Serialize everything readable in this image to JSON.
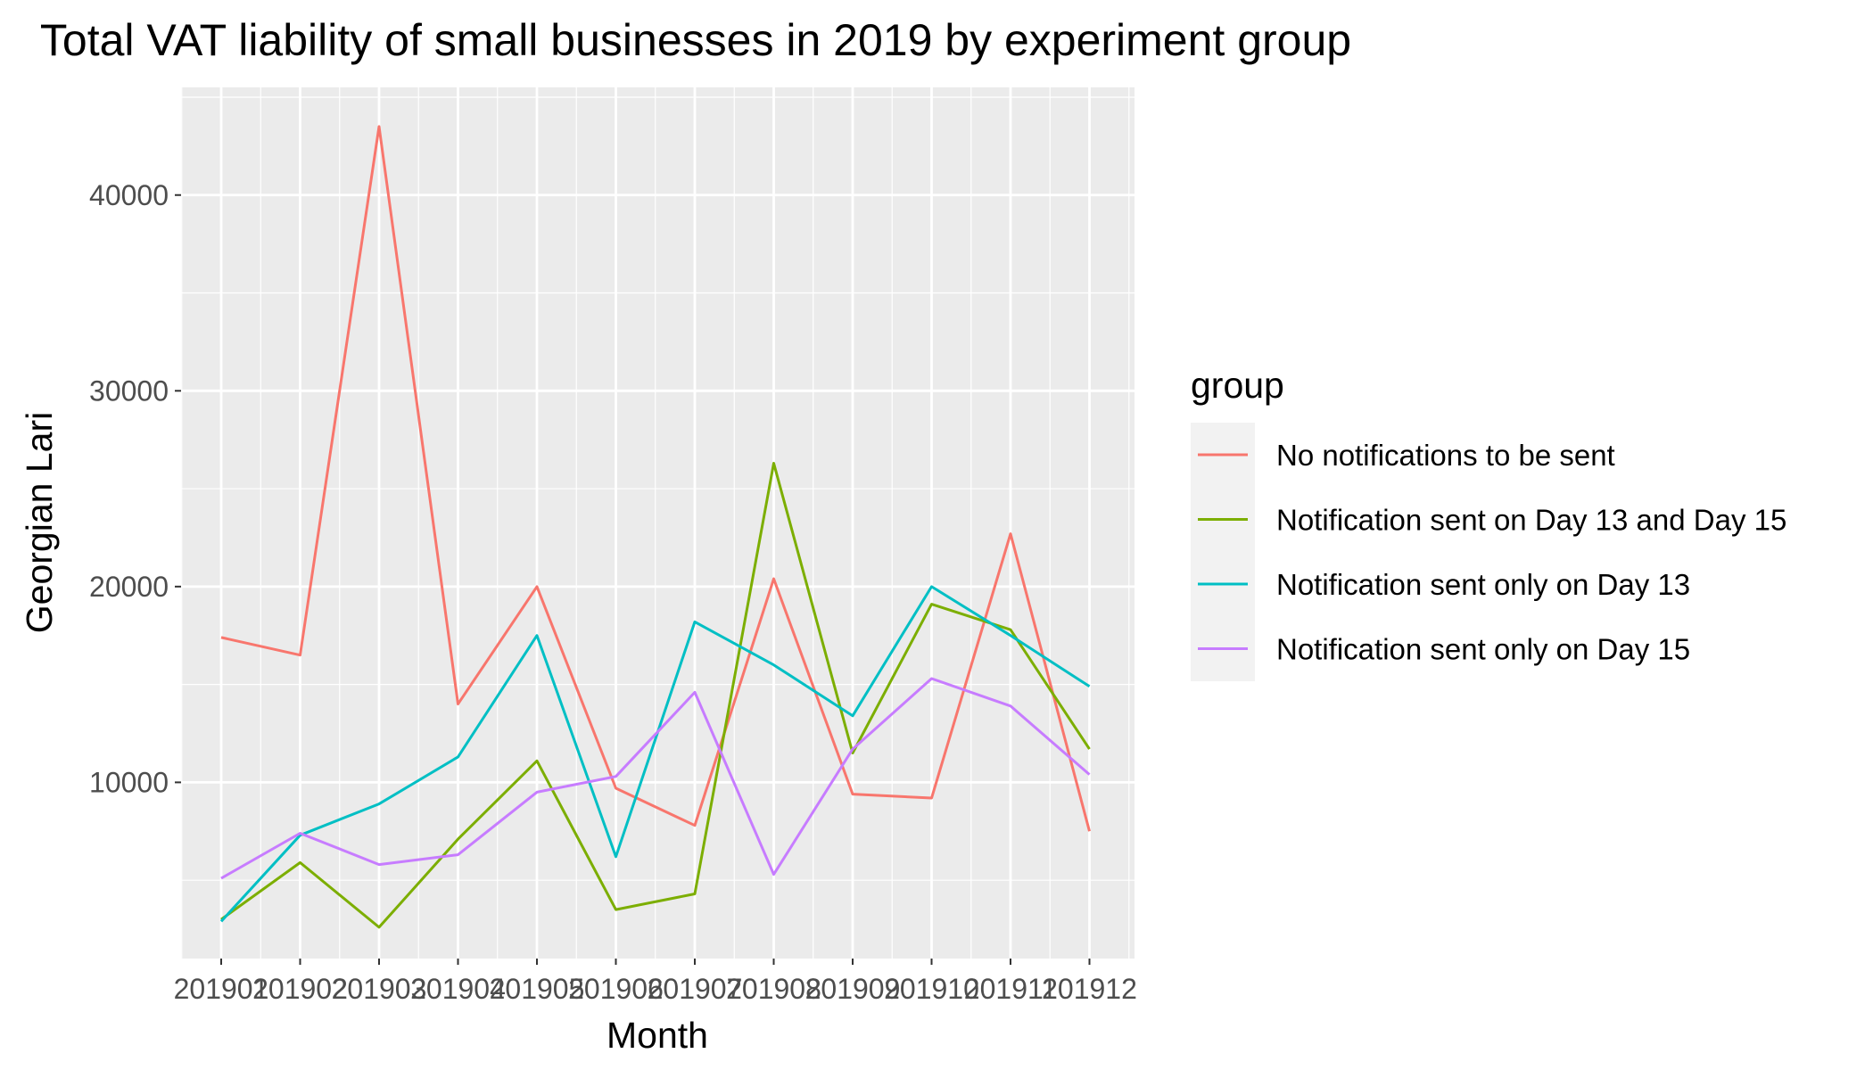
{
  "chart_data": {
    "type": "line",
    "title": "Total VAT liability of small businesses in 2019 by experiment group",
    "xlabel": "Month",
    "ylabel": "Georgian Lari",
    "categories": [
      "201901",
      "201902",
      "201903",
      "201904",
      "201905",
      "201906",
      "201907",
      "201908",
      "201909",
      "201910",
      "201911",
      "201912"
    ],
    "ylim": [
      1000,
      45500
    ],
    "y_ticks": [
      10000,
      20000,
      30000,
      40000
    ],
    "y_tick_labels": [
      "10000",
      "20000",
      "30000",
      "40000"
    ],
    "grid": true,
    "legend": {
      "title": "group",
      "placement": "right"
    },
    "series": [
      {
        "name": "No notifications to be sent",
        "color": "#F8766D",
        "values": [
          17400,
          16500,
          43500,
          14000,
          20000,
          9700,
          7800,
          20400,
          9400,
          9200,
          22700,
          7500
        ]
      },
      {
        "name": "Notification sent on Day 13 and Day 15",
        "color": "#7CAE00",
        "values": [
          3000,
          5900,
          2600,
          7100,
          11100,
          3500,
          4300,
          26300,
          11500,
          19100,
          17800,
          11700
        ]
      },
      {
        "name": "Notification sent only on Day 13",
        "color": "#00BFC4",
        "values": [
          2900,
          7300,
          8900,
          11300,
          17500,
          6200,
          18200,
          16000,
          13400,
          20000,
          17500,
          14900
        ]
      },
      {
        "name": "Notification sent only on Day 15",
        "color": "#C77CFF",
        "values": [
          5100,
          7400,
          5800,
          6300,
          9500,
          10300,
          14600,
          5300,
          11700,
          15300,
          13900,
          10400
        ]
      }
    ]
  }
}
